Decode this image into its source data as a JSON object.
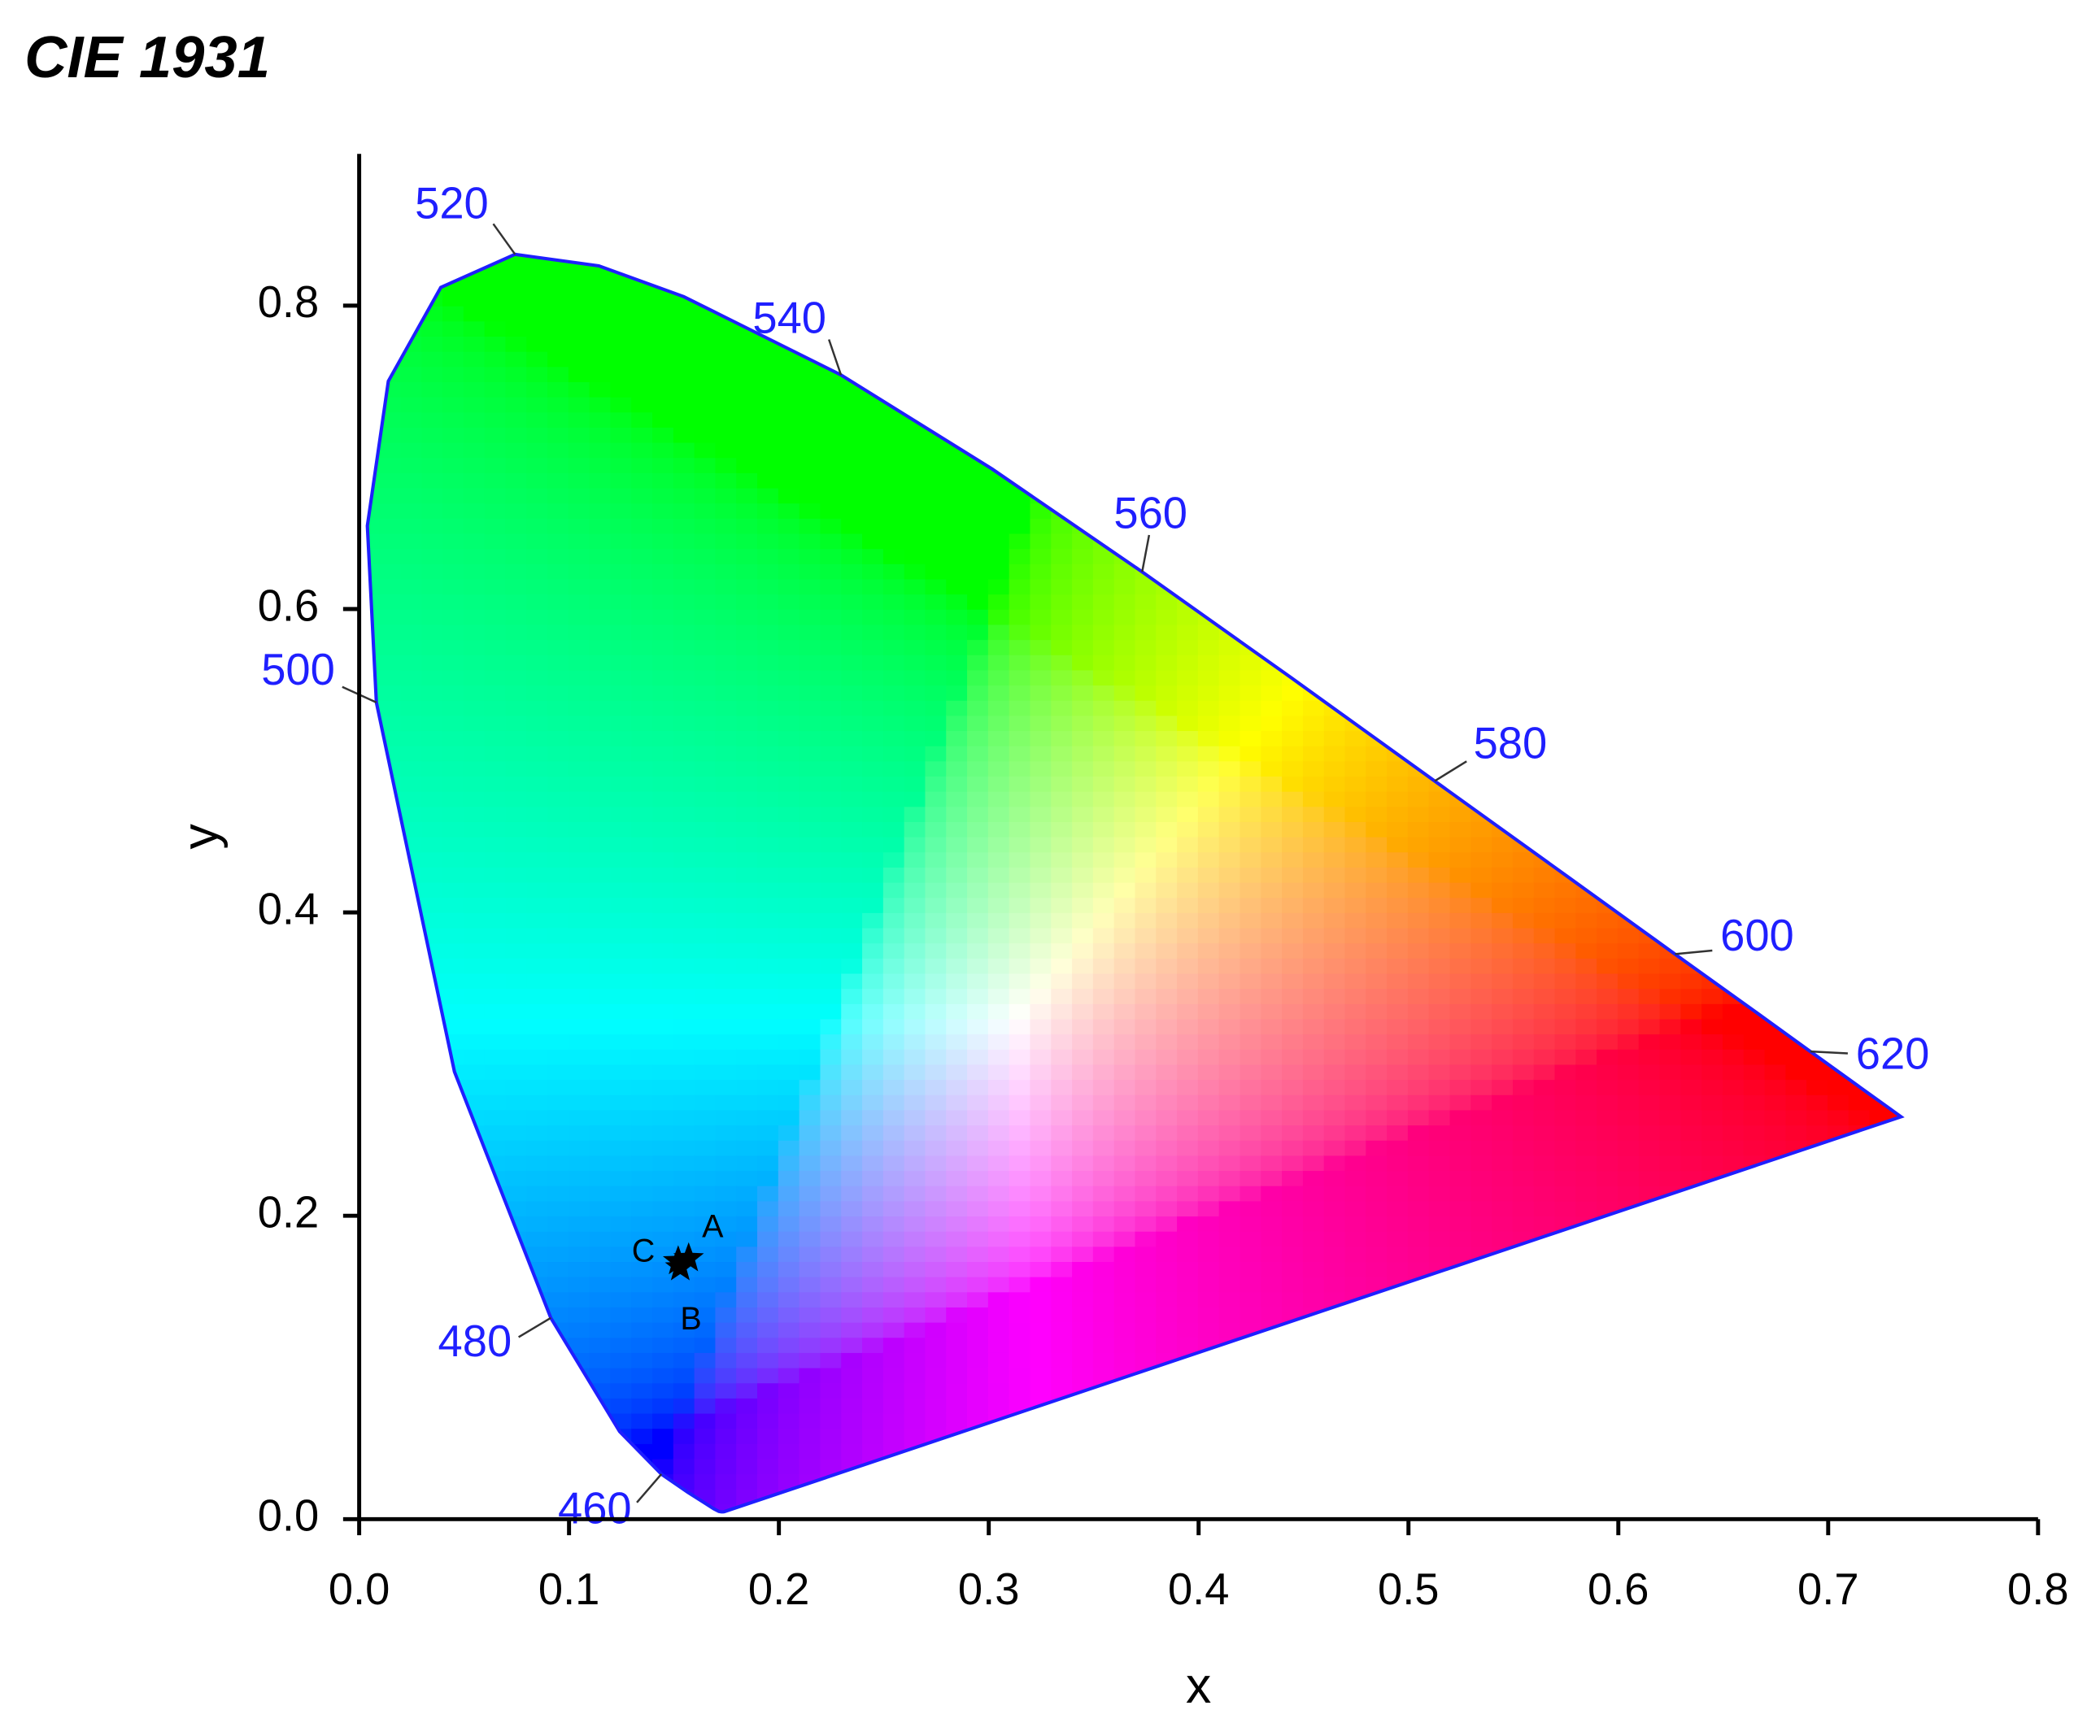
{
  "chart_data": {
    "type": "scatter",
    "title": "CIE 1931",
    "x_label": "x",
    "y_label": "y",
    "xlim": [
      0,
      0.8
    ],
    "ylim": [
      0,
      0.9
    ],
    "xticks": [
      {
        "value": 0,
        "label": "0.0"
      },
      0.1,
      0.2,
      0.3,
      0.4,
      0.5,
      0.6,
      0.7,
      0.8
    ],
    "yticks": [
      {
        "value": 0,
        "label": "0.0"
      },
      0.2,
      0.4,
      0.6,
      0.8
    ],
    "locus": {
      "color": "#1f1fff",
      "labels": [
        null,
        null,
        null,
        null,
        null,
        null,
        null,
        null,
        "460",
        null,
        "480",
        null,
        "500",
        null,
        null,
        null,
        "520",
        null,
        null,
        "540",
        null,
        "560",
        null,
        "580",
        null,
        "600",
        null,
        "620",
        null,
        null,
        null
      ],
      "x": [
        0.1741,
        0.1738,
        0.1733,
        0.1726,
        0.1714,
        0.1689,
        0.1644,
        0.1566,
        0.144,
        0.1241,
        0.0913,
        0.0454,
        0.0082,
        0.0039,
        0.0139,
        0.0389,
        0.0743,
        0.1142,
        0.1547,
        0.2296,
        0.3016,
        0.3731,
        0.4441,
        0.5125,
        0.5752,
        0.627,
        0.6658,
        0.6915,
        0.719,
        0.73,
        0.7347
      ],
      "y": [
        0.005,
        0.0049,
        0.0048,
        0.0048,
        0.0051,
        0.0069,
        0.0109,
        0.0177,
        0.0297,
        0.0578,
        0.1327,
        0.295,
        0.5384,
        0.6548,
        0.7502,
        0.812,
        0.8338,
        0.8262,
        0.8059,
        0.7543,
        0.6923,
        0.6245,
        0.5547,
        0.4866,
        0.4242,
        0.3725,
        0.334,
        0.3083,
        0.2809,
        0.27,
        0.2653
      ]
    },
    "points": {
      "color": "#000000",
      "labels": [
        "A",
        "B",
        "C"
      ],
      "x": [
        0.157,
        0.153,
        0.152
      ],
      "y": [
        0.172,
        0.166,
        0.17
      ]
    }
  }
}
